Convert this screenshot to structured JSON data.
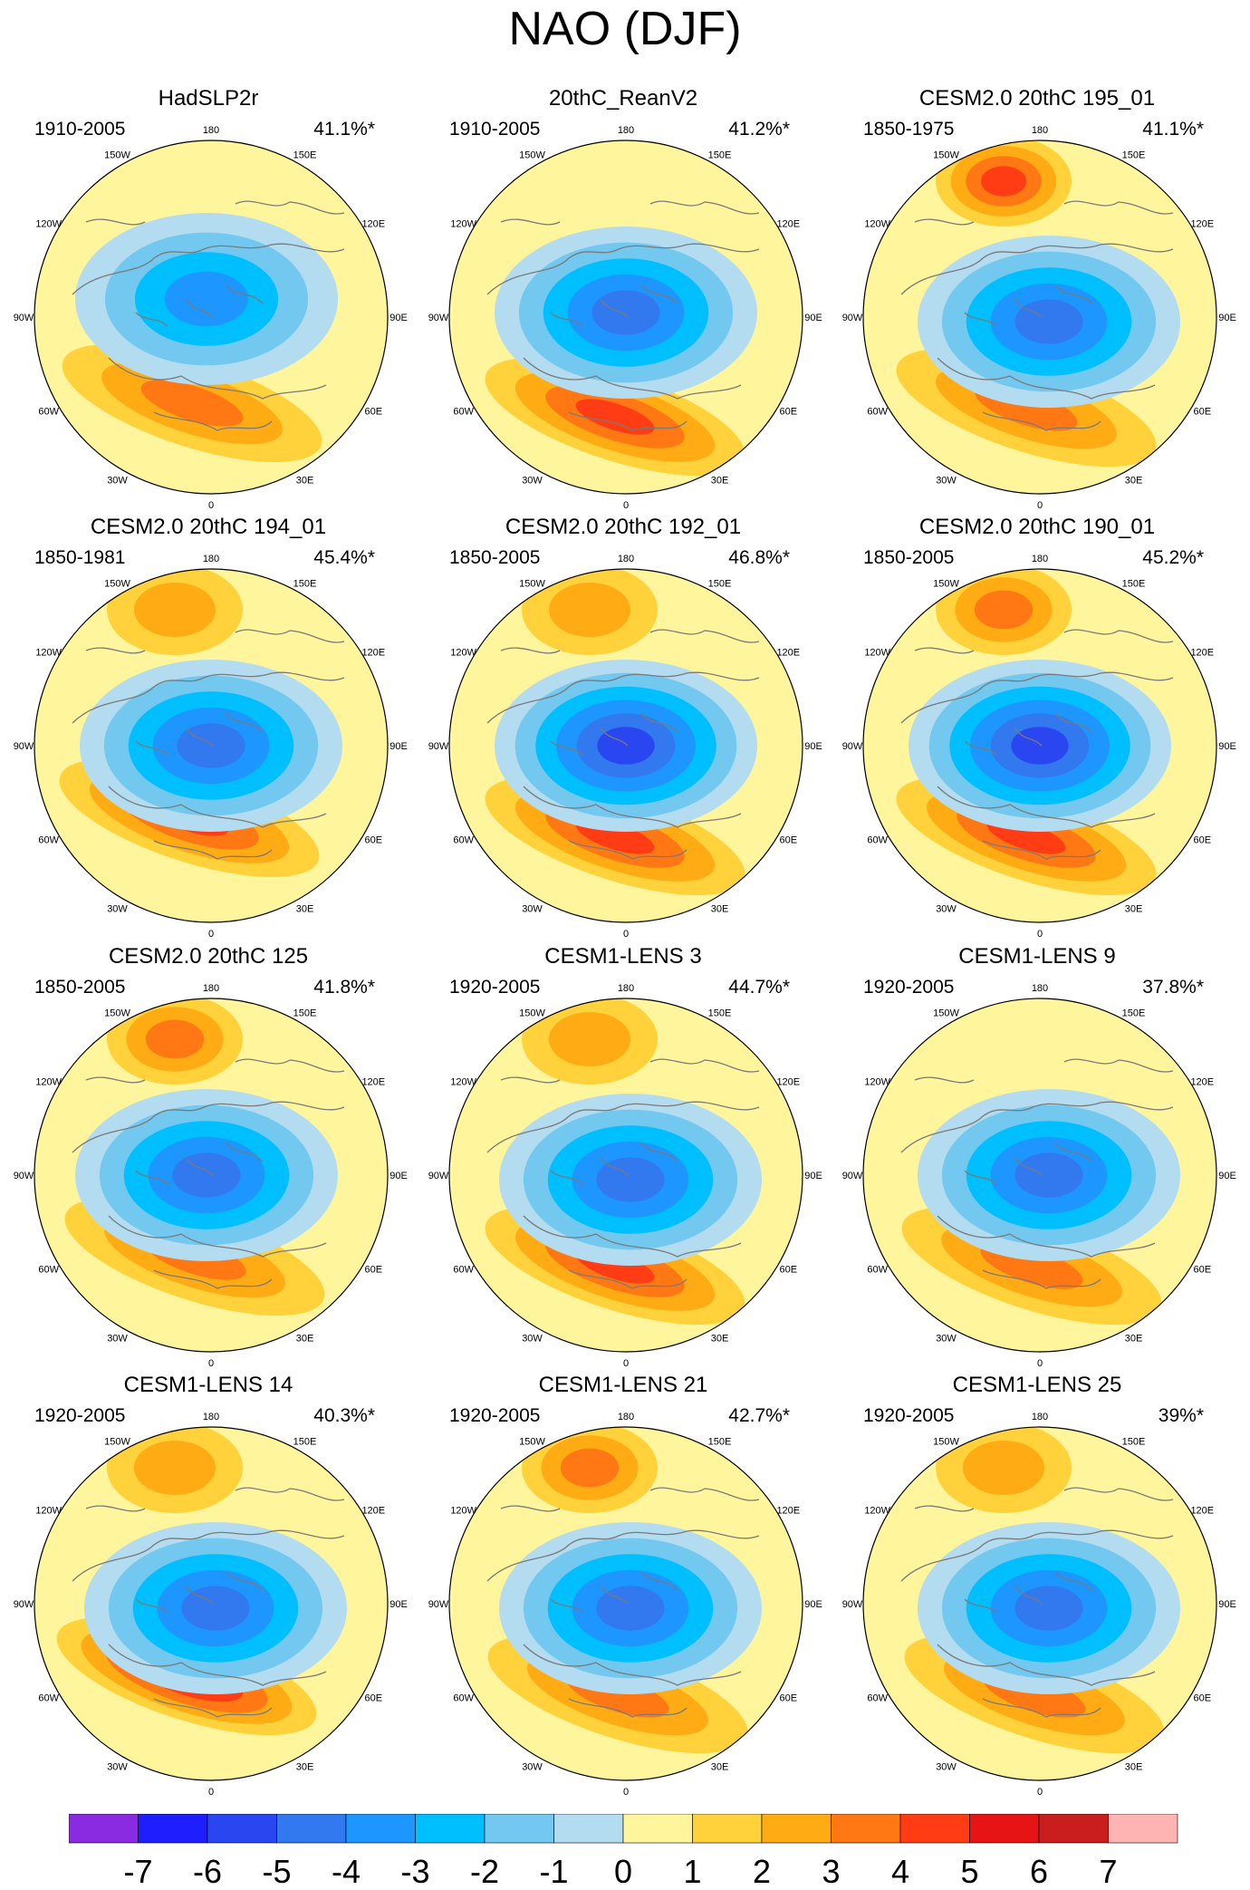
{
  "figure": {
    "title": "NAO (DJF)"
  },
  "colors": {
    "bins": [
      "#8a2be2",
      "#1e1eff",
      "#2a46f0",
      "#3278ee",
      "#1e96ff",
      "#00bfff",
      "#73c8f0",
      "#b3dcf0",
      "#fff59d",
      "#ffd23c",
      "#ffac14",
      "#ff7814",
      "#ff3c14",
      "#e61414",
      "#c81e1e",
      "#ffb4b4"
    ],
    "coast": "#7a7a7a"
  },
  "chart_data": {
    "type": "heatmap",
    "projection": "north-polar-stereographic",
    "variable": "NAO pattern (DJF), sea level pressure",
    "colorbar": {
      "levels": [
        -7,
        -6,
        -5,
        -4,
        -3,
        -2,
        -1,
        0,
        1,
        2,
        3,
        4,
        5,
        6,
        7
      ],
      "labels": [
        "-7",
        "-6",
        "-5",
        "-4",
        "-3",
        "-2",
        "-1",
        "0",
        "1",
        "2",
        "3",
        "4",
        "5",
        "6",
        "7"
      ]
    },
    "longitude_labels": [
      "180",
      "150E",
      "120E",
      "90E",
      "60E",
      "30E",
      "0",
      "30W",
      "60W",
      "90W",
      "120W",
      "150W"
    ],
    "panels": [
      {
        "title": "HadSLP2r",
        "period": "1910-2005",
        "variance": "41.1%*",
        "low_min": -4,
        "high_max": 3,
        "pacific_high": 0,
        "arctic_center": [
          -10,
          -40
        ],
        "atlantic_high": [
          -70,
          95
        ]
      },
      {
        "title": "20thC_ReanV2",
        "period": "1910-2005",
        "variance": "41.2%*",
        "low_min": -5,
        "high_max": 4,
        "pacific_high": 0,
        "arctic_center": [
          0,
          -10
        ],
        "atlantic_high": [
          -40,
          110
        ]
      },
      {
        "title": "CESM2.0 20thC 195_01",
        "period": "1850-1975",
        "variance": "41.1%*",
        "low_min": -5,
        "high_max": 3,
        "pacific_high": 4,
        "arctic_center": [
          20,
          10
        ],
        "atlantic_high": [
          -50,
          100
        ]
      },
      {
        "title": "CESM2.0 20thC 194_01",
        "period": "1850-1981",
        "variance": "45.4%*",
        "low_min": -5,
        "high_max": 4,
        "pacific_high": 2,
        "arctic_center": [
          0,
          0
        ],
        "atlantic_high": [
          -80,
          80
        ]
      },
      {
        "title": "CESM2.0 20thC 192_01",
        "period": "1850-2005",
        "variance": "46.8%*",
        "low_min": -6,
        "high_max": 4,
        "pacific_high": 2,
        "arctic_center": [
          0,
          0
        ],
        "atlantic_high": [
          -40,
          100
        ]
      },
      {
        "title": "CESM2.0 20thC 190_01",
        "period": "1850-2005",
        "variance": "45.2%*",
        "low_min": -6,
        "high_max": 4,
        "pacific_high": 3,
        "arctic_center": [
          0,
          0
        ],
        "atlantic_high": [
          -50,
          100
        ]
      },
      {
        "title": "CESM2.0 20thC 125",
        "period": "1850-2005",
        "variance": "41.8%*",
        "low_min": -5,
        "high_max": 3,
        "pacific_high": 3,
        "arctic_center": [
          -10,
          0
        ],
        "atlantic_high": [
          -60,
          90
        ]
      },
      {
        "title": "CESM1-LENS 3",
        "period": "1920-2005",
        "variance": "44.7%*",
        "low_min": -5,
        "high_max": 4,
        "pacific_high": 2,
        "arctic_center": [
          10,
          10
        ],
        "atlantic_high": [
          -40,
          100
        ]
      },
      {
        "title": "CESM1-LENS 9",
        "period": "1920-2005",
        "variance": "37.8%*",
        "low_min": -5,
        "high_max": 3,
        "pacific_high": 0,
        "arctic_center": [
          20,
          0
        ],
        "atlantic_high": [
          -30,
          100
        ]
      },
      {
        "title": "CESM1-LENS 14",
        "period": "1920-2005",
        "variance": "40.3%*",
        "low_min": -5,
        "high_max": 5,
        "pacific_high": 2,
        "arctic_center": [
          10,
          10
        ],
        "atlantic_high": [
          -90,
          80
        ]
      },
      {
        "title": "CESM1-LENS 21",
        "period": "1920-2005",
        "variance": "42.7%*",
        "low_min": -5,
        "high_max": 3,
        "pacific_high": 3,
        "arctic_center": [
          10,
          10
        ],
        "atlantic_high": [
          -30,
          100
        ]
      },
      {
        "title": "CESM1-LENS 25",
        "period": "1920-2005",
        "variance": "39%*",
        "low_min": -5,
        "high_max": 3,
        "pacific_high": 2,
        "arctic_center": [
          20,
          10
        ],
        "atlantic_high": [
          -20,
          100
        ]
      }
    ]
  }
}
